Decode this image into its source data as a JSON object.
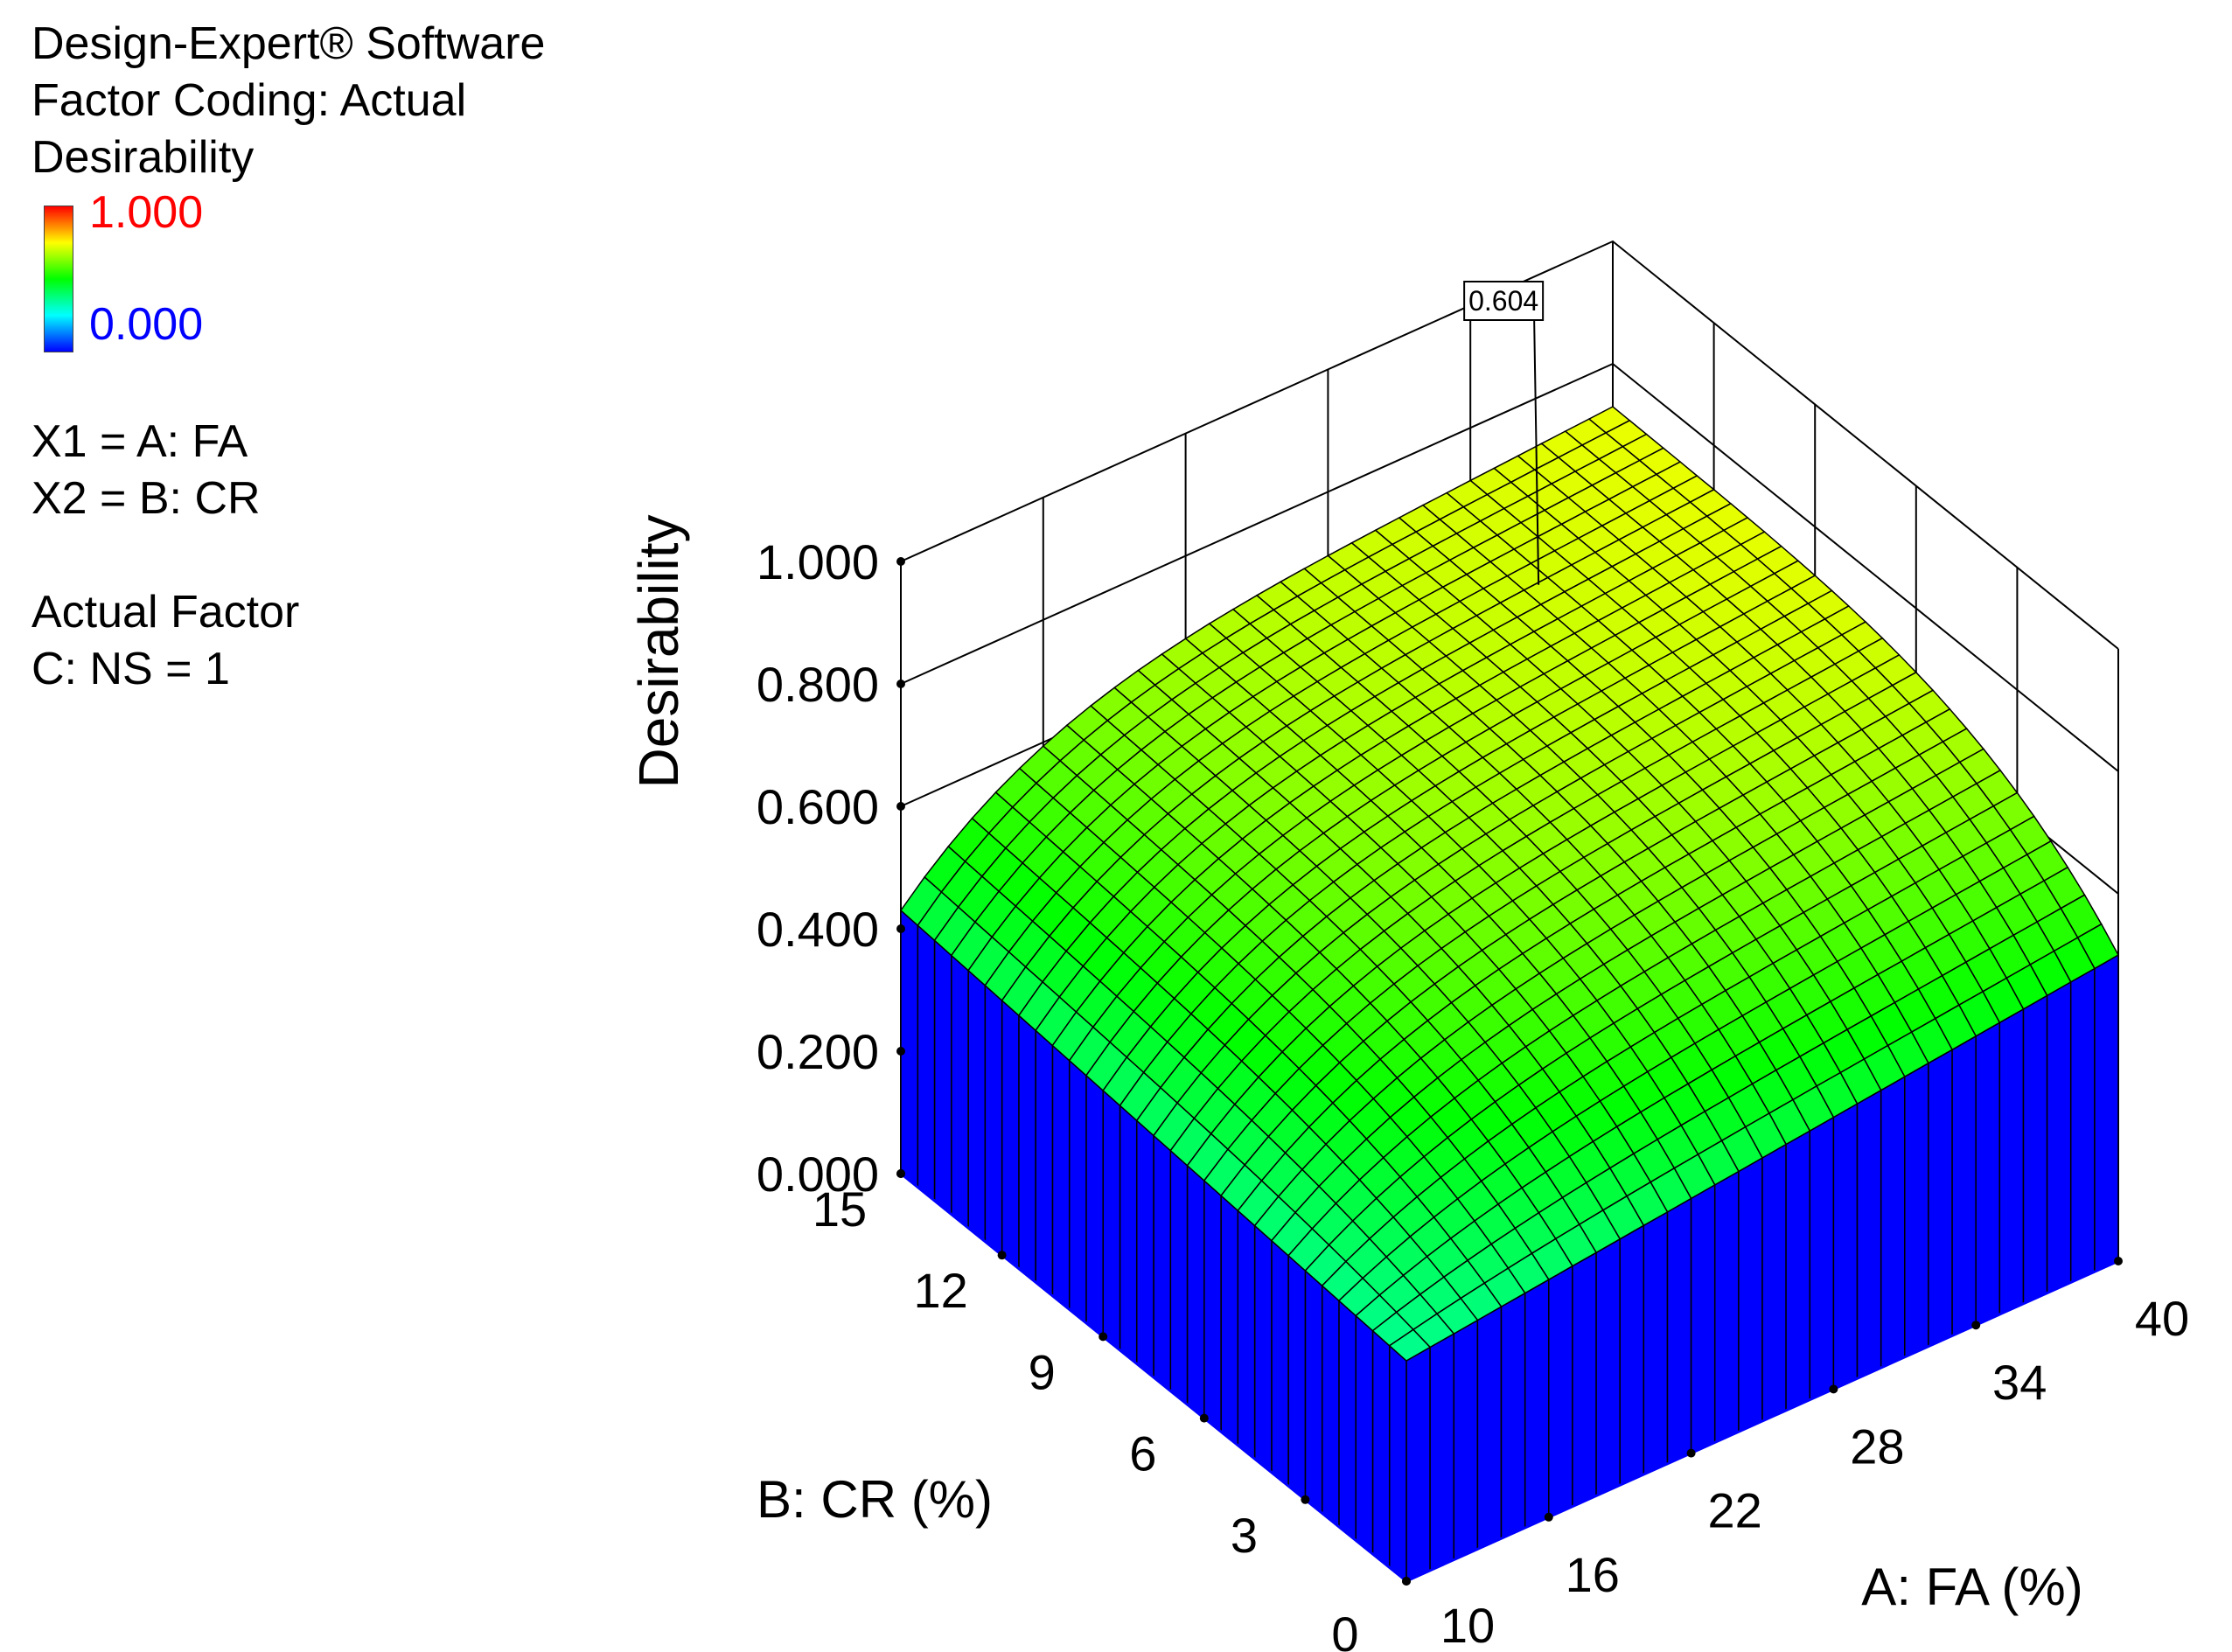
{
  "legend": {
    "software": "Design-Expert® Software",
    "coding": "Factor Coding: Actual",
    "response": "Desirability",
    "color_max": "1.000",
    "color_min": "0.000",
    "x1": "X1 = A: FA",
    "x2": "X2 = B: CR",
    "actual_factor_title": "Actual Factor",
    "actual_factor": "C: NS = 1"
  },
  "chart_data": {
    "type": "surface",
    "zlabel": "Desirability",
    "xlabel": "A: FA (%)",
    "ylabel": "B: CR (%)",
    "x_ticks": [
      "10",
      "16",
      "22",
      "28",
      "34",
      "40"
    ],
    "y_ticks": [
      "0",
      "3",
      "6",
      "9",
      "12",
      "15"
    ],
    "z_ticks": [
      "0.000",
      "0.200",
      "0.400",
      "0.600",
      "0.800",
      "1.000"
    ],
    "xlim": [
      10,
      40
    ],
    "ylim": [
      0,
      15
    ],
    "zlim": [
      0,
      1
    ],
    "annotation": {
      "label": "0.604",
      "x": 34.6,
      "y": 13.4,
      "value": 0.604
    },
    "colors": {
      "surface_min": "#0000ff",
      "surface_max": "#ff0000",
      "contour_floor": "#ffff00",
      "walls": "#0000ff"
    },
    "corner_values": [
      {
        "x": 10,
        "y": 0,
        "value": 0.36
      },
      {
        "x": 40,
        "y": 0,
        "value": 0.5
      },
      {
        "x": 10,
        "y": 15,
        "value": 0.43
      },
      {
        "x": 40,
        "y": 15,
        "value": 0.57
      }
    ],
    "max_value": 0.604
  }
}
